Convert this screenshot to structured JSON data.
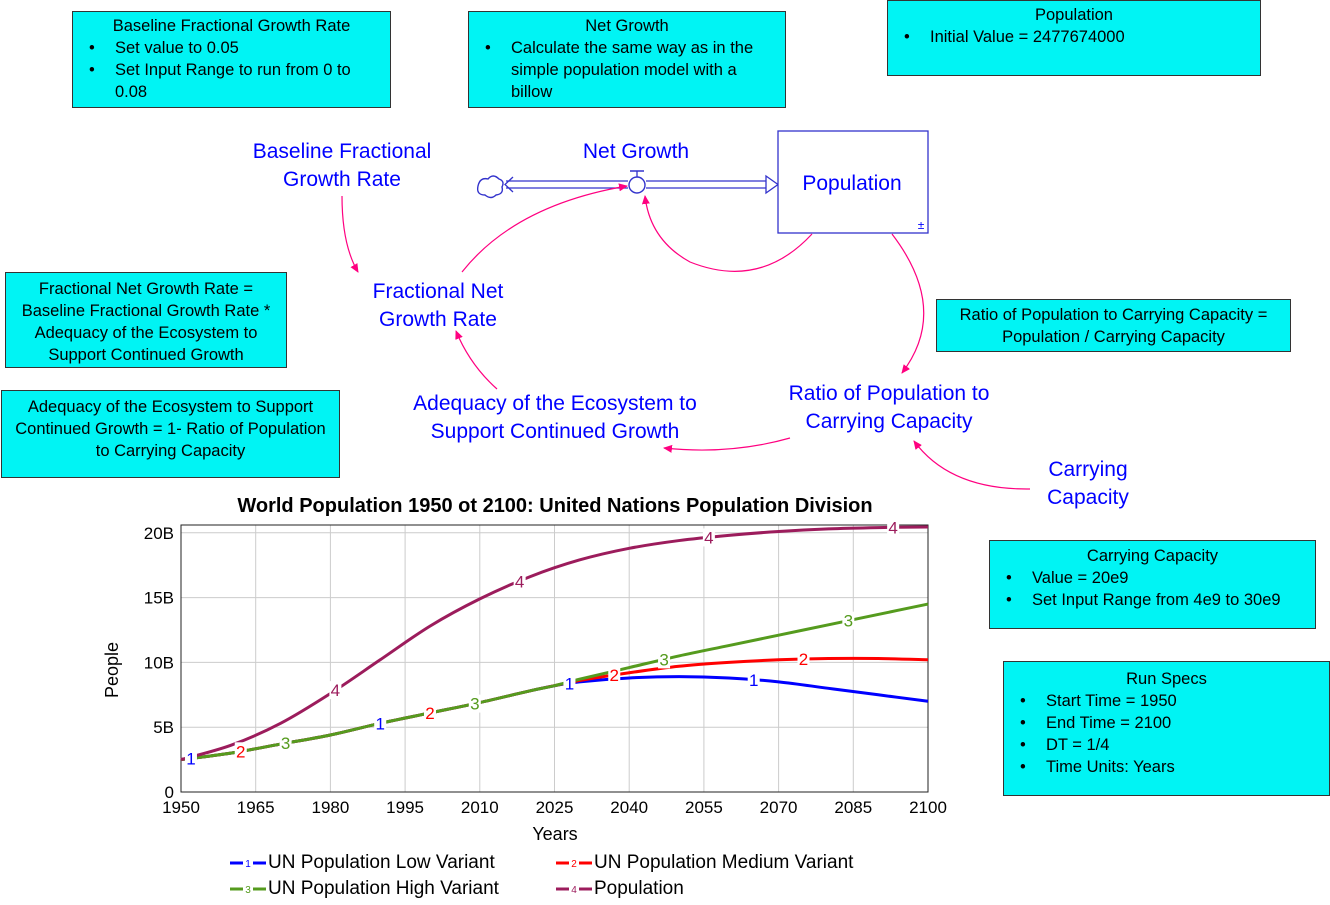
{
  "notes": {
    "baseline": {
      "title": "Baseline Fractional Growth Rate",
      "bullets": [
        "Set value to 0.05",
        "Set Input Range to run from 0 to 0.08"
      ]
    },
    "net_growth": {
      "title": "Net Growth",
      "bullets": [
        "Calculate the same way as in the simple population model with a billow"
      ]
    },
    "population": {
      "title": "Population",
      "bullets": [
        "Initial Value = 2477674000"
      ]
    },
    "fractional": {
      "text": "Fractional Net Growth Rate = Baseline Fractional Growth Rate * Adequacy of the Ecosystem to Support Continued Growth"
    },
    "adequacy": {
      "text": "Adequacy of the Ecosystem to Support Continued Growth = 1- Ratio of Population to Carrying Capacity"
    },
    "ratio": {
      "text": "Ratio of Population to Carrying Capacity = Population / Carrying Capacity"
    },
    "carrying": {
      "title": "Carrying Capacity",
      "bullets": [
        "Value = 20e9",
        "Set Input Range from 4e9 to 30e9"
      ]
    },
    "runspecs": {
      "title": "Run Specs",
      "bullets": [
        "Start Time = 1950",
        "End Time = 2100",
        "DT = 1/4",
        "Time Units: Years"
      ]
    }
  },
  "diagram": {
    "baseline_label": "Baseline Fractional Growth Rate",
    "net_growth_label": "Net Growth",
    "population_label": "Population",
    "population_marker": "±",
    "fractional_label": "Fractional Net Growth Rate",
    "adequacy_label": "Adequacy of the Ecosystem to Support Continued Growth",
    "ratio_label": "Ratio of Population to Carrying Capacity",
    "carrying_label": "Carrying Capacity",
    "colors": {
      "variable": "#0000ff",
      "link": "#ff0080",
      "flow": "#3333cc",
      "note": "#00f4f4"
    }
  },
  "chart_data": {
    "type": "line",
    "title": "World Population 1950 ot 2100: United Nations Population Division",
    "xlabel": "Years",
    "ylabel": "People",
    "xlim": [
      1950,
      2100
    ],
    "ylim": [
      0,
      20.6
    ],
    "x_ticks": [
      "1950",
      "1965",
      "1980",
      "1995",
      "2010",
      "2025",
      "2040",
      "2055",
      "2070",
      "2085",
      "2100"
    ],
    "y_ticks": [
      {
        "value": 0,
        "label": "0"
      },
      {
        "value": 5,
        "label": "5B"
      },
      {
        "value": 10,
        "label": "10B"
      },
      {
        "value": 15,
        "label": "15B"
      },
      {
        "value": 20,
        "label": "20B"
      }
    ],
    "grid": true,
    "legend_position": "bottom",
    "series": [
      {
        "name": "UN Population Low Variant",
        "number": "1",
        "color": "#0000ff",
        "x": [
          1950,
          1960,
          1970,
          1980,
          1990,
          2000,
          2010,
          2020,
          2025,
          2030,
          2040,
          2050,
          2060,
          2070,
          2080,
          2090,
          2100
        ],
        "y": [
          2.5,
          3.0,
          3.7,
          4.4,
          5.3,
          6.1,
          6.9,
          7.8,
          8.2,
          8.5,
          8.8,
          8.9,
          8.8,
          8.5,
          8.0,
          7.5,
          7.0
        ],
        "markers": [
          1952,
          1990,
          2028,
          2065
        ]
      },
      {
        "name": "UN Population Medium Variant",
        "number": "2",
        "color": "#ff0000",
        "x": [
          1950,
          1960,
          1970,
          1980,
          1990,
          2000,
          2010,
          2020,
          2025,
          2030,
          2040,
          2050,
          2060,
          2070,
          2080,
          2090,
          2100
        ],
        "y": [
          2.5,
          3.0,
          3.7,
          4.4,
          5.3,
          6.1,
          6.9,
          7.8,
          8.2,
          8.6,
          9.2,
          9.7,
          10.0,
          10.2,
          10.3,
          10.3,
          10.2
        ],
        "markers": [
          1962,
          2000,
          2037,
          2075
        ]
      },
      {
        "name": "UN Population High Variant",
        "number": "3",
        "color": "#559b1e",
        "x": [
          1950,
          1960,
          1970,
          1980,
          1990,
          2000,
          2010,
          2020,
          2025,
          2030,
          2040,
          2050,
          2060,
          2070,
          2080,
          2090,
          2100
        ],
        "y": [
          2.5,
          3.0,
          3.7,
          4.4,
          5.3,
          6.1,
          6.9,
          7.8,
          8.2,
          8.7,
          9.6,
          10.5,
          11.3,
          12.1,
          12.9,
          13.7,
          14.5
        ],
        "markers": [
          1971,
          2009,
          2047,
          2084
        ]
      },
      {
        "name": "Population",
        "number": "4",
        "color": "#9c1c5c",
        "x": [
          1950,
          1960,
          1970,
          1980,
          1990,
          2000,
          2010,
          2020,
          2030,
          2040,
          2050,
          2060,
          2070,
          2080,
          2090,
          2100
        ],
        "y": [
          2.5,
          3.6,
          5.3,
          7.6,
          10.2,
          12.8,
          14.9,
          16.6,
          17.9,
          18.8,
          19.4,
          19.8,
          20.1,
          20.3,
          20.4,
          20.45
        ],
        "markers": [
          1981,
          2018,
          2056,
          2093
        ]
      }
    ]
  }
}
